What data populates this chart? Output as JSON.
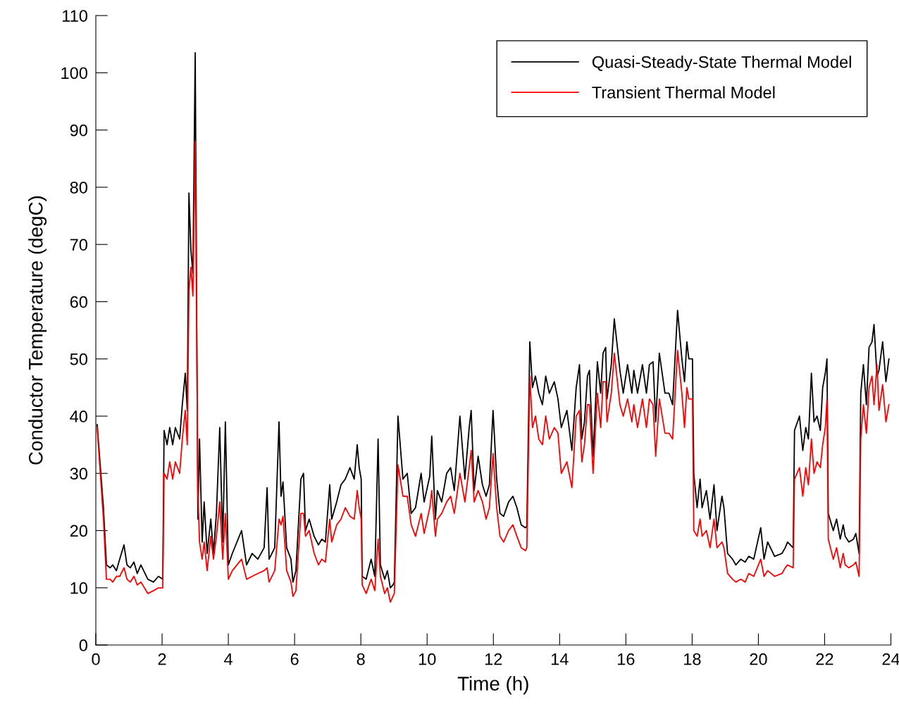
{
  "chart_data": {
    "type": "line",
    "xlabel": "Time (h)",
    "ylabel": "Conductor Temperature (degC)",
    "xlim": [
      0,
      24
    ],
    "ylim": [
      0,
      110
    ],
    "xticks": [
      0,
      2,
      4,
      6,
      8,
      10,
      12,
      14,
      16,
      18,
      20,
      22,
      24
    ],
    "yticks": [
      0,
      10,
      20,
      30,
      40,
      50,
      60,
      70,
      80,
      90,
      100,
      110
    ],
    "grid": false,
    "legend": "top right",
    "marker": "none",
    "line_style": "solid",
    "x": [
      0.04,
      0.23,
      0.32,
      0.43,
      0.51,
      0.62,
      0.72,
      0.85,
      0.94,
      1.04,
      1.15,
      1.25,
      1.36,
      1.57,
      1.74,
      1.89,
      2.02,
      2.06,
      2.15,
      2.23,
      2.32,
      2.4,
      2.53,
      2.61,
      2.7,
      2.76,
      2.81,
      2.87,
      2.93,
      3.0,
      3.08,
      3.13,
      3.21,
      3.27,
      3.36,
      3.47,
      3.55,
      3.64,
      3.74,
      3.83,
      3.91,
      4.0,
      4.12,
      4.4,
      4.55,
      4.72,
      4.89,
      5.08,
      5.17,
      5.23,
      5.4,
      5.53,
      5.59,
      5.65,
      5.76,
      5.89,
      5.95,
      6.04,
      6.19,
      6.27,
      6.33,
      6.44,
      6.59,
      6.72,
      6.82,
      6.93,
      7.06,
      7.12,
      7.27,
      7.4,
      7.53,
      7.67,
      7.8,
      7.89,
      7.95,
      8.01,
      8.04,
      8.16,
      8.31,
      8.42,
      8.52,
      8.59,
      8.72,
      8.8,
      8.89,
      8.97,
      9.01,
      9.12,
      9.27,
      9.4,
      9.52,
      9.65,
      9.82,
      9.91,
      10.08,
      10.14,
      10.25,
      10.31,
      10.44,
      10.59,
      10.71,
      10.82,
      10.99,
      11.14,
      11.27,
      11.33,
      11.42,
      11.54,
      11.67,
      11.78,
      11.88,
      11.99,
      12.1,
      12.2,
      12.31,
      12.46,
      12.59,
      12.71,
      12.84,
      12.97,
      13.01,
      13.1,
      13.18,
      13.27,
      13.37,
      13.48,
      13.58,
      13.69,
      13.84,
      13.95,
      14.05,
      14.22,
      14.37,
      14.5,
      14.6,
      14.67,
      14.75,
      14.84,
      14.9,
      15.01,
      15.14,
      15.24,
      15.31,
      15.39,
      15.43,
      15.56,
      15.65,
      15.82,
      15.92,
      16.05,
      16.18,
      16.24,
      16.35,
      16.5,
      16.62,
      16.71,
      16.82,
      16.9,
      17.01,
      17.18,
      17.3,
      17.41,
      17.56,
      17.69,
      17.77,
      17.84,
      17.9,
      18.01,
      18.05,
      18.15,
      18.24,
      18.3,
      18.43,
      18.54,
      18.66,
      18.75,
      18.9,
      18.96,
      19.07,
      19.22,
      19.32,
      19.47,
      19.6,
      19.71,
      19.86,
      20.07,
      20.17,
      20.28,
      20.49,
      20.71,
      20.81,
      20.88,
      21.05,
      21.09,
      21.24,
      21.34,
      21.43,
      21.51,
      21.6,
      21.68,
      21.77,
      21.87,
      21.94,
      22.02,
      22.07,
      22.11,
      22.26,
      22.36,
      22.47,
      22.56,
      22.62,
      22.73,
      22.87,
      22.94,
      23.04,
      23.09,
      23.17,
      23.26,
      23.34,
      23.43,
      23.49,
      23.58,
      23.64,
      23.75,
      23.85,
      23.94
    ],
    "series": [
      {
        "name": "Quasi-Steady-State Thermal Model",
        "color": "#000000",
        "values": [
          38.5,
          24,
          14,
          13.5,
          14,
          13,
          15,
          17.5,
          14,
          13.5,
          14.5,
          12.5,
          14,
          11.5,
          11,
          12,
          11.5,
          37.5,
          35,
          38,
          35,
          38,
          36,
          42,
          47.5,
          41,
          79,
          69,
          65,
          103.5,
          22,
          36,
          18,
          25,
          16,
          22,
          16,
          23,
          38,
          18,
          39,
          14,
          16,
          20,
          14,
          16,
          15,
          17,
          27.5,
          15,
          17,
          39,
          26,
          28.5,
          17,
          15,
          11,
          13,
          29,
          30,
          20,
          22,
          19,
          17.5,
          18.5,
          18,
          28,
          22,
          25,
          28,
          29,
          31,
          29,
          35,
          31,
          29,
          12,
          11.5,
          15,
          12,
          36,
          14,
          11.5,
          13,
          10,
          10.5,
          11,
          40,
          29,
          30,
          23,
          24,
          30,
          25,
          29.5,
          36.5,
          22,
          27,
          25,
          30,
          31,
          27,
          40,
          29,
          38,
          41,
          27,
          33,
          28,
          26,
          28,
          41,
          29,
          23,
          22.5,
          25,
          26,
          24,
          21,
          20.5,
          20.8,
          53,
          45,
          47,
          44,
          42,
          47,
          44,
          46,
          43,
          38,
          41,
          34,
          45,
          49,
          36,
          39,
          47,
          48,
          33,
          49.5,
          44,
          51,
          52,
          43,
          49,
          57,
          48,
          44,
          49,
          44,
          48,
          44,
          49,
          44,
          49,
          49.5,
          39,
          51,
          44,
          44,
          42,
          58.5,
          50,
          46,
          53,
          50,
          50,
          30,
          24,
          29,
          24,
          27,
          22,
          28,
          20,
          26,
          24,
          16,
          15,
          14,
          15,
          14.5,
          15.5,
          15,
          20.5,
          15,
          18,
          15.5,
          16,
          17,
          18,
          17,
          37.5,
          40,
          34,
          38,
          36,
          47.5,
          39,
          40,
          37.5,
          45,
          47.5,
          50,
          23,
          20,
          22,
          18.5,
          21,
          19,
          18,
          18.5,
          19.5,
          16,
          44,
          49,
          42,
          52,
          53,
          56,
          47,
          48,
          53,
          46,
          50
        ]
      },
      {
        "name": "Transient Thermal Model",
        "color": "#ff0000",
        "values": [
          38,
          22,
          11.5,
          11.5,
          11,
          12,
          12,
          13.5,
          11.5,
          11,
          12,
          10.5,
          11,
          9,
          9.5,
          10,
          10,
          30,
          29,
          32,
          29,
          32,
          30,
          36,
          41,
          35,
          62,
          66,
          61,
          88,
          27,
          18,
          15,
          18,
          13,
          19,
          15,
          19,
          25,
          15,
          23,
          11.5,
          13,
          15,
          11.5,
          12,
          12.5,
          13,
          13.5,
          11,
          13,
          22,
          21,
          22.5,
          13,
          11,
          8.5,
          9.5,
          23,
          23,
          19,
          20,
          16,
          14,
          15,
          14.5,
          22,
          18,
          21,
          22,
          24,
          22.5,
          22,
          27,
          24,
          22,
          10.5,
          9,
          11.5,
          9.5,
          18.5,
          12,
          9,
          10,
          7.5,
          8.5,
          9,
          31.5,
          26,
          26,
          21,
          19,
          23,
          19.5,
          24,
          27,
          19,
          22,
          23,
          25,
          26,
          23,
          30,
          25,
          31,
          34,
          25,
          27,
          25,
          22,
          24,
          33.5,
          24,
          19,
          18,
          20,
          21,
          19,
          17,
          16.5,
          17,
          47,
          38,
          40,
          36,
          35,
          40,
          36,
          38,
          37,
          30,
          32,
          27.5,
          40,
          41,
          32,
          35,
          42,
          42,
          30,
          44,
          38,
          46,
          46,
          39,
          44,
          51,
          42,
          40,
          43,
          39,
          42,
          38,
          43,
          38,
          43,
          42,
          33,
          43,
          37,
          37,
          36,
          51.5,
          44,
          38,
          45,
          43,
          43,
          20,
          19,
          22,
          19,
          20,
          17,
          22,
          17,
          18,
          17,
          12.5,
          11.5,
          11,
          11.5,
          11,
          12.5,
          12,
          15,
          12,
          13,
          12,
          12.5,
          13.5,
          14,
          13.5,
          29,
          31,
          26,
          31,
          28,
          36,
          30,
          32,
          31,
          35,
          38,
          43,
          18.5,
          15,
          17,
          13.5,
          16,
          14,
          13.5,
          14,
          14.5,
          12,
          36,
          42,
          37,
          45,
          47,
          42,
          49,
          41,
          45.5,
          39,
          42
        ]
      }
    ]
  }
}
